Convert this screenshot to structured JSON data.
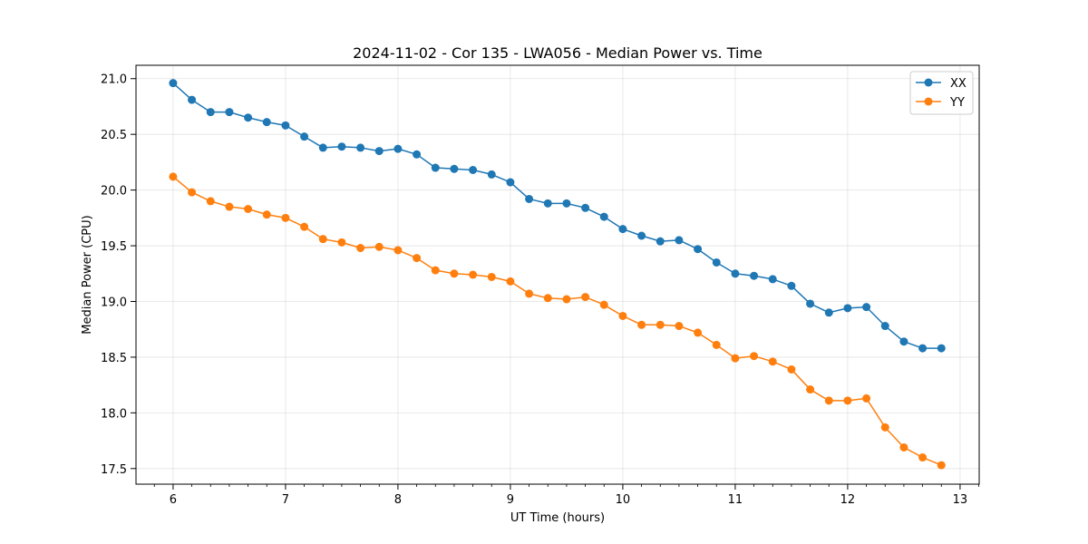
{
  "chart_data": {
    "type": "line",
    "title": "2024-11-02 - Cor 135 - LWA056 - Median Power vs. Time",
    "xlabel": "UT Time (hours)",
    "ylabel": "Median Power (CPU)",
    "xlim": [
      5.67,
      13.17
    ],
    "ylim": [
      17.36,
      21.12
    ],
    "xticks": [
      6,
      7,
      8,
      9,
      10,
      11,
      12,
      13
    ],
    "yticks": [
      17.5,
      18.0,
      18.5,
      19.0,
      19.5,
      20.0,
      20.5,
      21.0
    ],
    "xtick_labels": [
      "6",
      "7",
      "8",
      "9",
      "10",
      "11",
      "12",
      "13"
    ],
    "ytick_labels": [
      "17.5",
      "18.0",
      "18.5",
      "19.0",
      "19.5",
      "20.0",
      "20.5",
      "21.0"
    ],
    "grid": true,
    "legend_position": "top-right",
    "x": [
      6.0,
      6.1667,
      6.3333,
      6.5,
      6.6667,
      6.8333,
      7.0,
      7.1667,
      7.3333,
      7.5,
      7.6667,
      7.8333,
      8.0,
      8.1667,
      8.3333,
      8.5,
      8.6667,
      8.8333,
      9.0,
      9.1667,
      9.3333,
      9.5,
      9.6667,
      9.8333,
      10.0,
      10.1667,
      10.3333,
      10.5,
      10.6667,
      10.8333,
      11.0,
      11.1667,
      11.3333,
      11.5,
      11.6667,
      11.8333,
      12.0,
      12.1667,
      12.3333,
      12.5,
      12.6667,
      12.8333
    ],
    "series": [
      {
        "name": "XX",
        "color": "#1f77b4",
        "values": [
          20.96,
          20.81,
          20.7,
          20.7,
          20.65,
          20.61,
          20.58,
          20.48,
          20.38,
          20.39,
          20.38,
          20.35,
          20.37,
          20.32,
          20.2,
          20.19,
          20.18,
          20.14,
          20.07,
          19.92,
          19.88,
          19.88,
          19.84,
          19.76,
          19.65,
          19.59,
          19.54,
          19.55,
          19.47,
          19.35,
          19.25,
          19.23,
          19.2,
          19.14,
          18.98,
          18.9,
          18.94,
          18.95,
          18.78,
          18.64,
          18.58,
          18.58
        ]
      },
      {
        "name": "YY",
        "color": "#ff7f0e",
        "values": [
          20.12,
          19.98,
          19.9,
          19.85,
          19.83,
          19.78,
          19.75,
          19.67,
          19.56,
          19.53,
          19.48,
          19.49,
          19.46,
          19.39,
          19.28,
          19.25,
          19.24,
          19.22,
          19.18,
          19.07,
          19.03,
          19.02,
          19.04,
          18.97,
          18.87,
          18.79,
          18.79,
          18.78,
          18.72,
          18.61,
          18.49,
          18.51,
          18.46,
          18.39,
          18.21,
          18.11,
          18.11,
          18.13,
          17.87,
          17.69,
          17.6,
          17.53
        ]
      }
    ]
  }
}
